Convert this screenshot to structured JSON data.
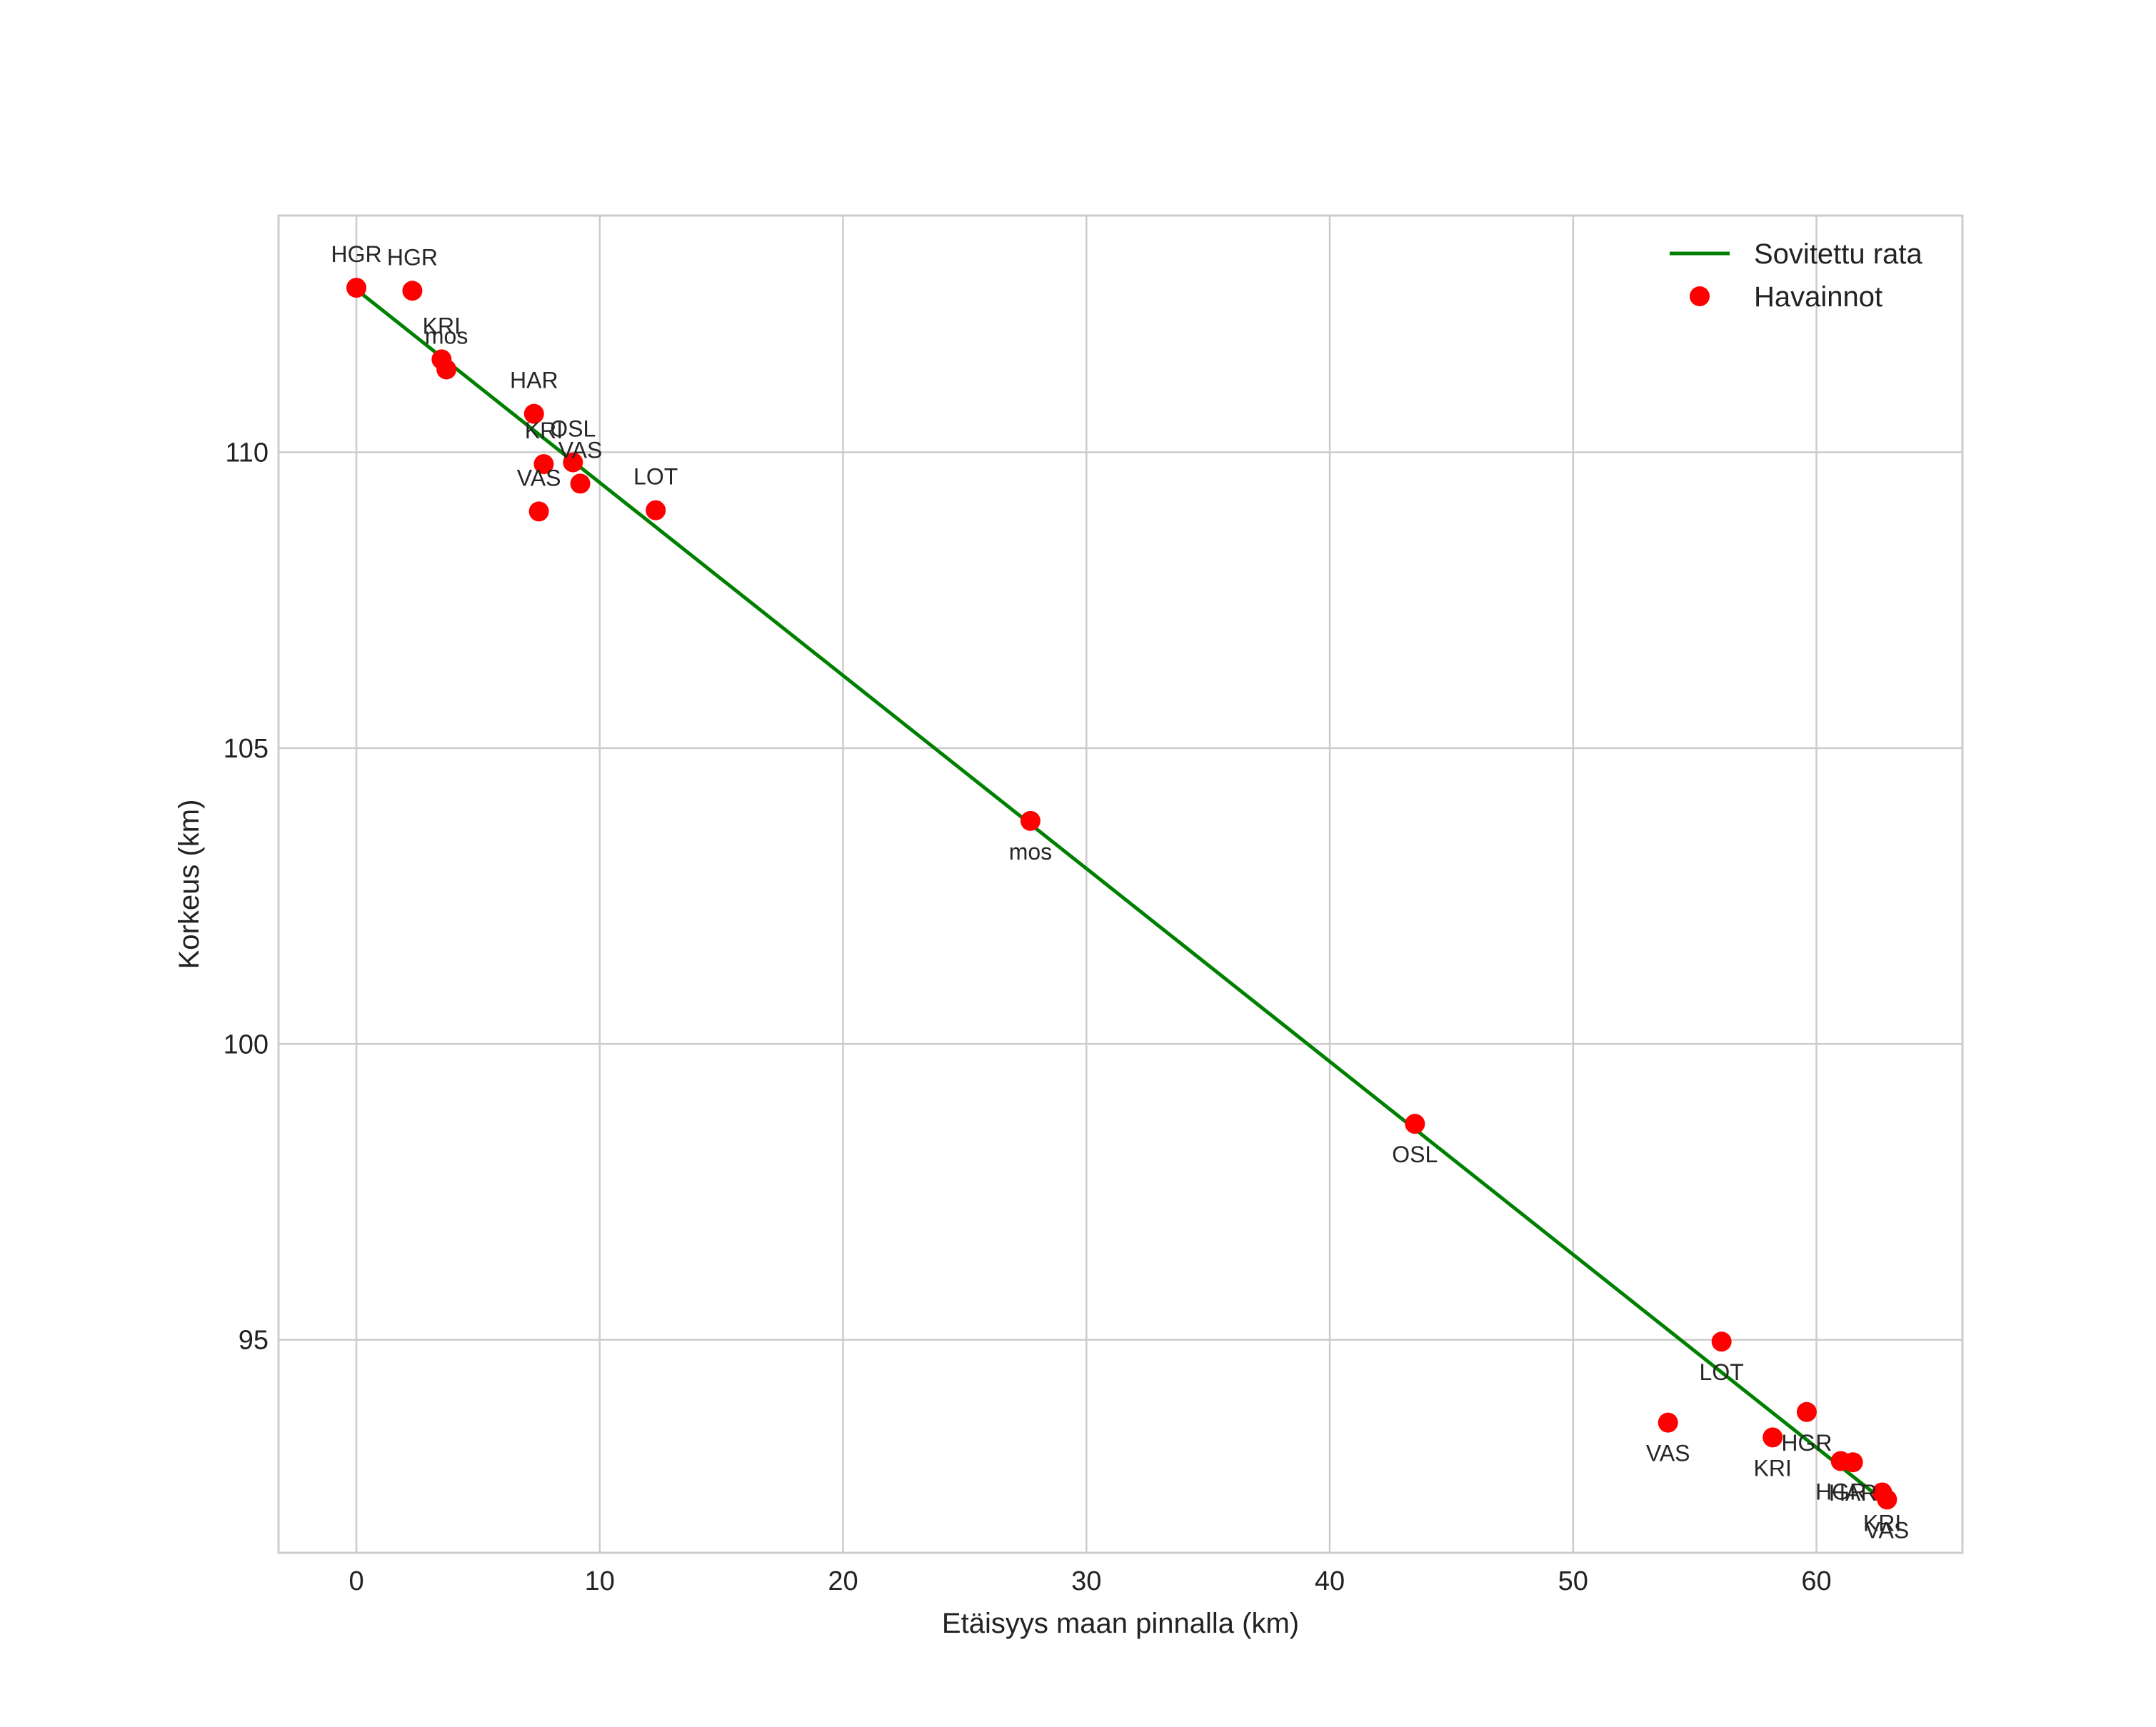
{
  "chart_data": {
    "type": "scatter",
    "title": "",
    "xlabel": "Etäisyys maan pinnalla (km)",
    "ylabel": "Korkeus (km)",
    "xlim": [
      -3.2,
      66
    ],
    "ylim": [
      91.4,
      114.0
    ],
    "xticks": [
      0,
      10,
      20,
      30,
      40,
      50,
      60
    ],
    "yticks": [
      95,
      100,
      105,
      110
    ],
    "grid": true,
    "legend": {
      "position": "top-right"
    },
    "series": [
      {
        "name": "Sovitettu rata",
        "kind": "line",
        "color": "#008000",
        "x": [
          0,
          63
        ],
        "y": [
          112.75,
          92.2
        ]
      },
      {
        "name": "Havainnot",
        "kind": "scatter",
        "color": "#ff0000",
        "points": [
          {
            "x": 0.0,
            "y": 112.78,
            "label": "HGR",
            "label_pos": "above"
          },
          {
            "x": 2.3,
            "y": 112.73,
            "label": "HGR",
            "label_pos": "above"
          },
          {
            "x": 3.5,
            "y": 111.57,
            "label": "KRI",
            "label_pos": "above"
          },
          {
            "x": 3.7,
            "y": 111.4,
            "label": "mos",
            "label_pos": "above"
          },
          {
            "x": 7.3,
            "y": 110.65,
            "label": "HAR",
            "label_pos": "above"
          },
          {
            "x": 7.7,
            "y": 109.8,
            "label": "KRI",
            "label_pos": "above"
          },
          {
            "x": 8.9,
            "y": 109.83,
            "label": "OSL",
            "label_pos": "above"
          },
          {
            "x": 9.2,
            "y": 109.47,
            "label": "VAS",
            "label_pos": "above"
          },
          {
            "x": 7.5,
            "y": 109.0,
            "label": "VAS",
            "label_pos": "above"
          },
          {
            "x": 12.3,
            "y": 109.02,
            "label": "LOT",
            "label_pos": "above"
          },
          {
            "x": 27.7,
            "y": 103.77,
            "label": "mos",
            "label_pos": "below"
          },
          {
            "x": 43.5,
            "y": 98.65,
            "label": "OSL",
            "label_pos": "below"
          },
          {
            "x": 56.1,
            "y": 94.97,
            "label": "LOT",
            "label_pos": "below"
          },
          {
            "x": 53.9,
            "y": 93.6,
            "label": "VAS",
            "label_pos": "below"
          },
          {
            "x": 59.6,
            "y": 93.78,
            "label": "HGR",
            "label_pos": "below"
          },
          {
            "x": 58.2,
            "y": 93.35,
            "label": "KRI",
            "label_pos": "below"
          },
          {
            "x": 61.0,
            "y": 92.95,
            "label": "HGR",
            "label_pos": "below"
          },
          {
            "x": 61.5,
            "y": 92.93,
            "label": "HAR",
            "label_pos": "below"
          },
          {
            "x": 62.7,
            "y": 92.42,
            "label": "KRI",
            "label_pos": "below"
          },
          {
            "x": 62.9,
            "y": 92.3,
            "label": "VAS",
            "label_pos": "below"
          }
        ]
      }
    ],
    "colors": {
      "grid": "#cccccc",
      "frame": "#cccccc",
      "fit_line": "#008000",
      "points": "#ff0000"
    }
  }
}
